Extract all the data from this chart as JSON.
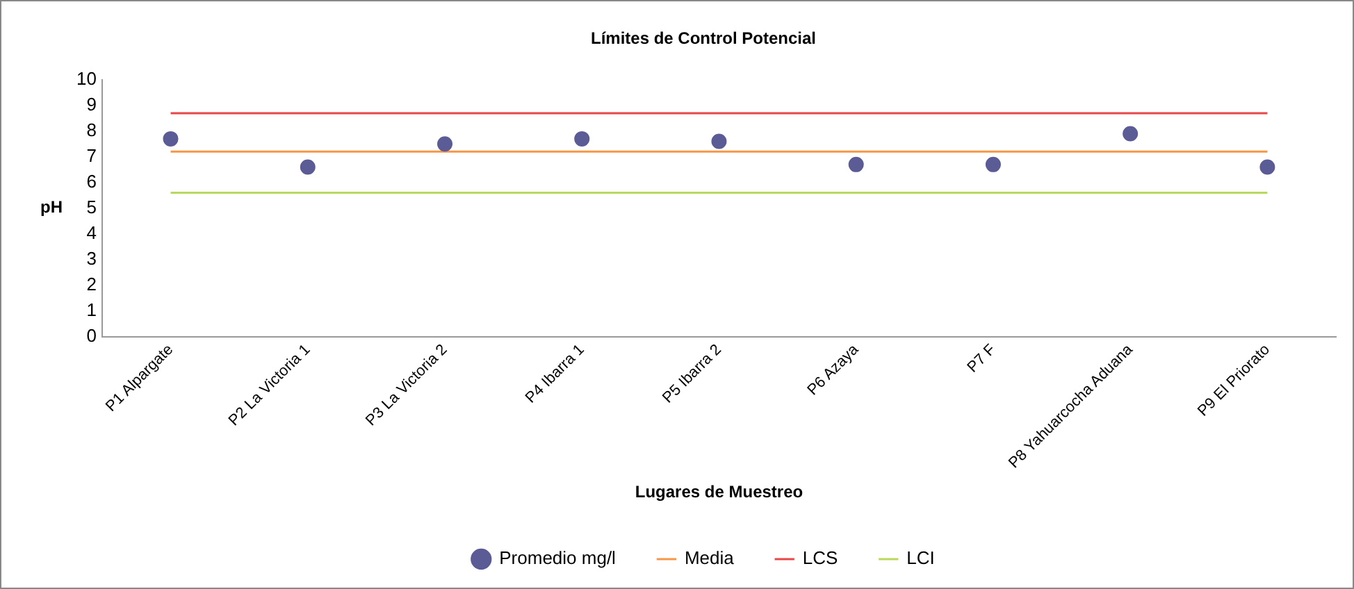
{
  "chart_data": {
    "type": "line",
    "title": "Límites de Control Potencial",
    "xlabel": "Lugares de Muestreo",
    "ylabel": "pH",
    "categories": [
      "P1 Alpargate",
      "P2 La Victoria 1",
      "P3 La Victoria 2",
      "P4 Ibarra 1",
      "P5 Ibarra 2",
      "P6 Azaya",
      "P7 F",
      "P8 Yahuarcocha Aduana",
      "P9 El Priorato"
    ],
    "series": [
      {
        "name": "Promedio mg/l",
        "type": "scatter",
        "marker": "circle",
        "color": "#5b5b95",
        "values": [
          7.7,
          6.6,
          7.5,
          7.7,
          7.6,
          6.7,
          6.7,
          7.9,
          6.6
        ]
      },
      {
        "name": "Media",
        "line_style": "solid",
        "color": "#f79646",
        "values": [
          7.2,
          7.2,
          7.2,
          7.2,
          7.2,
          7.2,
          7.2,
          7.2,
          7.2
        ]
      },
      {
        "name": "LCS",
        "line_style": "solid",
        "color": "#e8474a",
        "values": [
          8.7,
          8.7,
          8.7,
          8.7,
          8.7,
          8.7,
          8.7,
          8.7,
          8.7
        ]
      },
      {
        "name": "LCI",
        "line_style": "solid",
        "color": "#b8d85e",
        "values": [
          5.6,
          5.6,
          5.6,
          5.6,
          5.6,
          5.6,
          5.6,
          5.6,
          5.6
        ]
      }
    ],
    "ylim": [
      0,
      10
    ],
    "yticks": [
      0,
      1,
      2,
      3,
      4,
      5,
      6,
      7,
      8,
      9,
      10
    ],
    "grid": false,
    "legend": "bottom"
  }
}
